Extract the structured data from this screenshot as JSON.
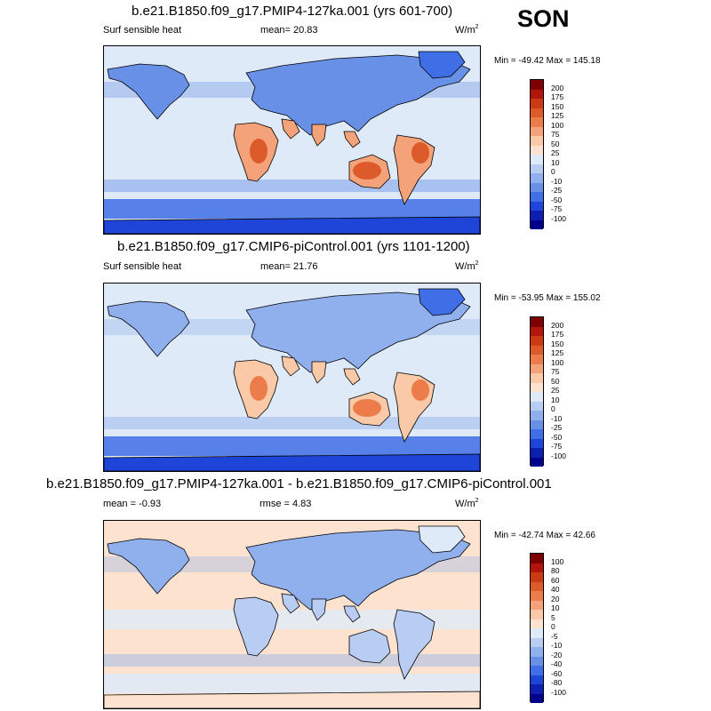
{
  "season": "SON",
  "panels": [
    {
      "title": "b.e21.B1850.f09_g17.PMIP4-127ka.001 (yrs 601-700)",
      "left_label": "Surf sensible heat",
      "mean_label": "mean=  20.83",
      "rmse_label": "",
      "units": "W/m",
      "units_sup": "2",
      "minmax": "Min = -49.42 Max = 145.18",
      "kind": "field"
    },
    {
      "title": "b.e21.B1850.f09_g17.CMIP6-piControl.001 (yrs 1101-1200)",
      "left_label": "Surf sensible heat",
      "mean_label": "mean=  21.76",
      "rmse_label": "",
      "units": "W/m",
      "units_sup": "2",
      "minmax": "Min = -53.95 Max = 155.02",
      "kind": "field"
    },
    {
      "title": "b.e21.B1850.f09_g17.PMIP4-127ka.001 - b.e21.B1850.f09_g17.CMIP6-piControl.001",
      "left_label": "mean =  -0.93",
      "mean_label": "",
      "rmse_label": "rmse =  4.83",
      "units": "W/m",
      "units_sup": "2",
      "minmax": "Min = -42.74 Max =  42.66",
      "kind": "diff"
    }
  ],
  "chart_data": [
    {
      "type": "heatmap",
      "title": "b.e21.B1850.f09_g17.PMIP4-127ka.001 (yrs 601-700)",
      "variable": "Surf sensible heat",
      "units": "W/m2",
      "mean": 20.83,
      "min": -49.42,
      "max": 145.18,
      "colorbar_levels": [
        200,
        175,
        150,
        125,
        100,
        75,
        50,
        25,
        10,
        0,
        -10,
        -25,
        -50,
        -75,
        -100
      ],
      "colorbar_colors": [
        "#7f0000",
        "#b2150c",
        "#cc3a14",
        "#dd5a2a",
        "#ec7c4a",
        "#f4a27a",
        "#f9c9a8",
        "#fde3cf",
        "#deeaf8",
        "#b9cdf2",
        "#8fb0ec",
        "#6890e6",
        "#3f6ee6",
        "#1e44d8",
        "#0d1fb0",
        "#00008a"
      ]
    },
    {
      "type": "heatmap",
      "title": "b.e21.B1850.f09_g17.CMIP6-piControl.001 (yrs 1101-1200)",
      "variable": "Surf sensible heat",
      "units": "W/m2",
      "mean": 21.76,
      "min": -53.95,
      "max": 155.02,
      "colorbar_levels": [
        200,
        175,
        150,
        125,
        100,
        75,
        50,
        25,
        10,
        0,
        -10,
        -25,
        -50,
        -75,
        -100
      ],
      "colorbar_colors": [
        "#7f0000",
        "#b2150c",
        "#cc3a14",
        "#dd5a2a",
        "#ec7c4a",
        "#f4a27a",
        "#f9c9a8",
        "#fde3cf",
        "#deeaf8",
        "#b9cdf2",
        "#8fb0ec",
        "#6890e6",
        "#3f6ee6",
        "#1e44d8",
        "#0d1fb0",
        "#00008a"
      ]
    },
    {
      "type": "heatmap",
      "title": "b.e21.B1850.f09_g17.PMIP4-127ka.001 - b.e21.B1850.f09_g17.CMIP6-piControl.001",
      "units": "W/m2",
      "mean": -0.93,
      "rmse": 4.83,
      "min": -42.74,
      "max": 42.66,
      "colorbar_levels": [
        100,
        80,
        60,
        40,
        20,
        10,
        5,
        0,
        -5,
        -10,
        -20,
        -40,
        -60,
        -80,
        -100
      ],
      "colorbar_colors": [
        "#7f0000",
        "#b2150c",
        "#cc3a14",
        "#dd5a2a",
        "#ec7c4a",
        "#f4a27a",
        "#f9c9a8",
        "#fde3cf",
        "#deeaf8",
        "#b9cdf2",
        "#8fb0ec",
        "#6890e6",
        "#3f6ee6",
        "#1e44d8",
        "#0d1fb0",
        "#00008a"
      ]
    }
  ]
}
